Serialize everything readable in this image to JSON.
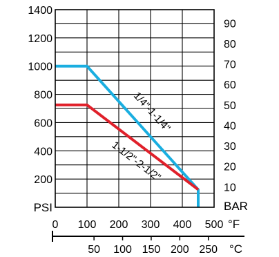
{
  "chart_data": {
    "type": "line",
    "title": "",
    "grid": true,
    "units": {
      "left": "PSI",
      "right": "BAR",
      "bottom_primary": "°F",
      "bottom_secondary": "°C"
    },
    "x_primary": {
      "label": "°F",
      "range": [
        0,
        500
      ],
      "ticks": [
        "0",
        "100",
        "200",
        "300",
        "400",
        "500"
      ]
    },
    "x_secondary": {
      "label": "°C",
      "range": [
        -17.8,
        260
      ],
      "ticks": [
        "50",
        "100",
        "150",
        "200",
        "250"
      ]
    },
    "y_left": {
      "label": "PSI",
      "range": [
        0,
        1400
      ],
      "ticks": [
        "200",
        "400",
        "600",
        "800",
        "1000",
        "1200",
        "1400"
      ]
    },
    "y_right": {
      "label": "BAR",
      "range": [
        0,
        96.5
      ],
      "ticks": [
        "10",
        "20",
        "30",
        "40",
        "50",
        "60",
        "70",
        "80",
        "90"
      ]
    },
    "series": [
      {
        "name": "1/4\"-1-1/4\"",
        "color": "#1aaee0",
        "points": [
          [
            0,
            1000
          ],
          [
            100,
            1000
          ],
          [
            450,
            125
          ],
          [
            450,
            0
          ]
        ]
      },
      {
        "name": "1-1/2\"-2-1/2\"",
        "color": "#e0202a",
        "points": [
          [
            0,
            725
          ],
          [
            100,
            725
          ],
          [
            450,
            125
          ]
        ]
      }
    ]
  }
}
